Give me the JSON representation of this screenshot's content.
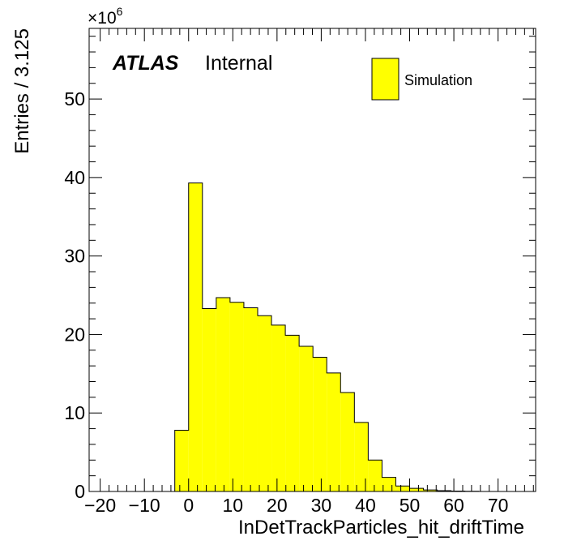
{
  "chart_data": {
    "type": "bar",
    "title": "",
    "xlabel": "InDetTrackParticles_hit_driftTime",
    "ylabel": "Entries / 3.125",
    "multiplier_label": "×10",
    "multiplier_exponent": "6",
    "xlim": [
      -22.5,
      78.5
    ],
    "ylim": [
      0,
      59
    ],
    "x_ticks": [
      -20,
      -10,
      0,
      10,
      20,
      30,
      40,
      50,
      60,
      70
    ],
    "y_ticks": [
      0,
      10,
      20,
      30,
      40,
      50
    ],
    "bin_width": 3.125,
    "bin_edges": [
      -3.125,
      0,
      3.125,
      6.25,
      9.375,
      12.5,
      15.625,
      18.75,
      21.875,
      25,
      28.125,
      31.25,
      34.375,
      37.5,
      40.625,
      43.75,
      46.875,
      50,
      53.125,
      56.25,
      59.375,
      62.5,
      65.625
    ],
    "series": [
      {
        "name": "Simulation",
        "values": [
          7.8,
          39.3,
          23.3,
          24.7,
          24.1,
          23.4,
          22.4,
          21.2,
          19.9,
          18.5,
          17.1,
          15.1,
          12.6,
          8.8,
          4.0,
          1.8,
          0.7,
          0.4,
          0.2,
          0.1,
          0.05,
          0.02
        ],
        "color": "#ffff00"
      }
    ],
    "legend_position": "top-right",
    "grid": false
  },
  "annotation": {
    "experiment": "ATLAS",
    "status": "Internal"
  },
  "legend": {
    "label": "Simulation"
  }
}
